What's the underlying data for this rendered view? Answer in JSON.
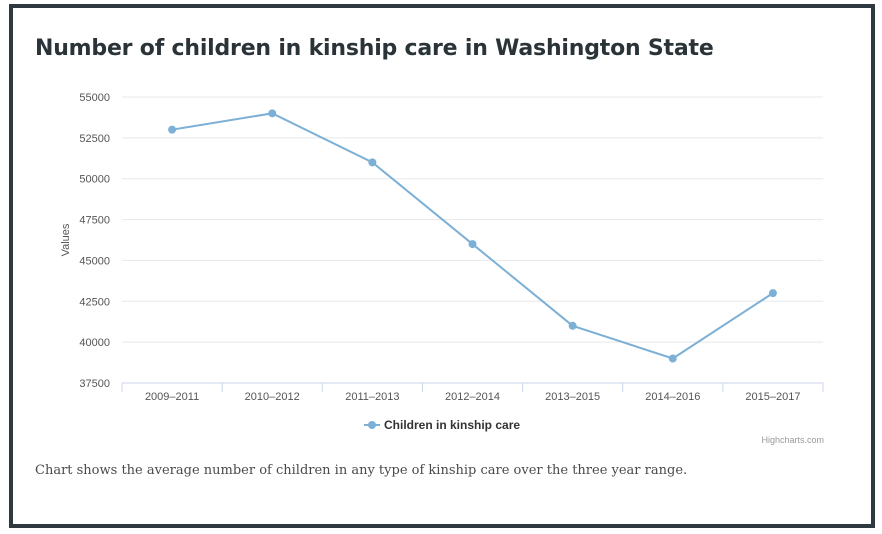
{
  "title": "Number of children in kinship care in Washington State",
  "caption": "Chart shows the average number of children in any type of kinship care over the three year range.",
  "credits": "Highcharts.com",
  "colors": {
    "frame": "#2f3a40",
    "series": "#7cb0d6",
    "grid": "#e8e8e8",
    "axis_text": "#555555",
    "title": "#2a3338"
  },
  "chart_data": {
    "type": "line",
    "title": "Number of children in kinship care in Washington State",
    "xlabel": "",
    "ylabel": "Values",
    "categories": [
      "2009–2011",
      "2010–2012",
      "2011–2013",
      "2012–2014",
      "2013–2015",
      "2014–2016",
      "2015–2017"
    ],
    "series": [
      {
        "name": "Children in kinship care",
        "values": [
          53000,
          54000,
          51000,
          46000,
          41000,
          39000,
          43000
        ],
        "color": "#7cb0d6"
      }
    ],
    "ylim": [
      37500,
      55000
    ],
    "yticks": [
      37500,
      40000,
      42500,
      45000,
      47500,
      50000,
      52500,
      55000
    ],
    "grid": true,
    "legend": "bottom-center"
  }
}
